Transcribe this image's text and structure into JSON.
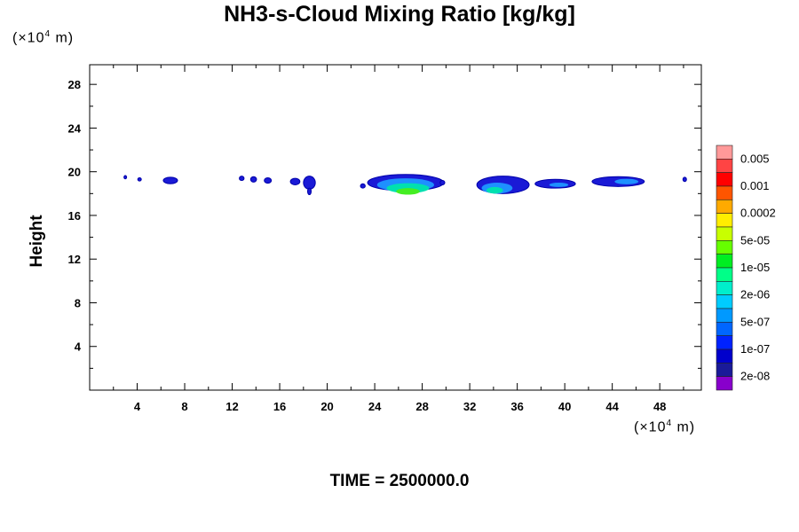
{
  "chart_data": {
    "type": "heatmap",
    "title": "NH3-s-Cloud Mixing Ratio [kg/kg]",
    "xlabel": "",
    "ylabel": "Height",
    "x_unit": {
      "prefix": "(×10",
      "exp": "4",
      "suffix": " m)"
    },
    "y_unit": {
      "prefix": "(×10",
      "exp": "4",
      "suffix": " m)"
    },
    "xlim": [
      0,
      51.5
    ],
    "ylim": [
      0,
      29.8
    ],
    "x_major_ticks": [
      4,
      8,
      12,
      16,
      20,
      24,
      28,
      32,
      36,
      40,
      44,
      48
    ],
    "y_major_ticks": [
      4,
      8,
      12,
      16,
      20,
      24,
      28
    ],
    "grid": false,
    "colorbar": {
      "colors": [
        "#ff9999",
        "#ff4444",
        "#ff0000",
        "#ff5500",
        "#ffaa00",
        "#ffee00",
        "#c8ff00",
        "#66ff00",
        "#00ee22",
        "#00ff88",
        "#00eecc",
        "#00ccff",
        "#0099ff",
        "#0066ff",
        "#0022ff",
        "#0000cc",
        "#1a1a99",
        "#8800cc"
      ],
      "labels": [
        "0.005",
        "0.001",
        "0.0002",
        "5e-05",
        "1e-05",
        "2e-06",
        "5e-07",
        "1e-07",
        "2e-08"
      ]
    },
    "cloud_features": [
      {
        "x": 3.0,
        "y": 19.5,
        "rx": 0.1,
        "ry": 0.15,
        "level": "low"
      },
      {
        "x": 4.2,
        "y": 19.3,
        "rx": 0.15,
        "ry": 0.15,
        "level": "low"
      },
      {
        "x": 6.8,
        "y": 19.2,
        "rx": 0.6,
        "ry": 0.3,
        "level": "low"
      },
      {
        "x": 12.8,
        "y": 19.4,
        "rx": 0.2,
        "ry": 0.2,
        "level": "low"
      },
      {
        "x": 13.8,
        "y": 19.3,
        "rx": 0.25,
        "ry": 0.25,
        "level": "low"
      },
      {
        "x": 15.0,
        "y": 19.2,
        "rx": 0.3,
        "ry": 0.25,
        "level": "low"
      },
      {
        "x": 17.3,
        "y": 19.1,
        "rx": 0.4,
        "ry": 0.3,
        "level": "low"
      },
      {
        "x": 18.5,
        "y": 19.0,
        "rx": 0.5,
        "ry": 0.6,
        "level": "low"
      },
      {
        "x": 18.5,
        "y": 18.2,
        "rx": 0.15,
        "ry": 0.3,
        "level": "low"
      },
      {
        "x": 23.0,
        "y": 18.7,
        "rx": 0.2,
        "ry": 0.2,
        "level": "low"
      },
      {
        "x": 26.6,
        "y": 19.0,
        "rx": 3.2,
        "ry": 0.75,
        "level": "low"
      },
      {
        "x": 26.6,
        "y": 18.8,
        "rx": 2.4,
        "ry": 0.6,
        "level": "mid"
      },
      {
        "x": 26.8,
        "y": 18.5,
        "rx": 1.8,
        "ry": 0.45,
        "level": "high"
      },
      {
        "x": 26.8,
        "y": 18.2,
        "rx": 1.0,
        "ry": 0.3,
        "level": "peak"
      },
      {
        "x": 29.7,
        "y": 19.0,
        "rx": 0.2,
        "ry": 0.2,
        "level": "low"
      },
      {
        "x": 34.8,
        "y": 18.8,
        "rx": 2.2,
        "ry": 0.8,
        "level": "low"
      },
      {
        "x": 34.3,
        "y": 18.5,
        "rx": 1.3,
        "ry": 0.5,
        "level": "mid"
      },
      {
        "x": 34.1,
        "y": 18.3,
        "rx": 0.7,
        "ry": 0.3,
        "level": "high"
      },
      {
        "x": 39.2,
        "y": 18.9,
        "rx": 1.7,
        "ry": 0.4,
        "level": "low"
      },
      {
        "x": 39.5,
        "y": 18.8,
        "rx": 0.8,
        "ry": 0.2,
        "level": "mid"
      },
      {
        "x": 44.5,
        "y": 19.1,
        "rx": 2.2,
        "ry": 0.45,
        "level": "low"
      },
      {
        "x": 45.2,
        "y": 19.1,
        "rx": 1.0,
        "ry": 0.25,
        "level": "mid"
      },
      {
        "x": 50.1,
        "y": 19.3,
        "rx": 0.15,
        "ry": 0.2,
        "level": "low"
      }
    ]
  },
  "footer": {
    "time_label": "TIME = 2500000.0"
  }
}
